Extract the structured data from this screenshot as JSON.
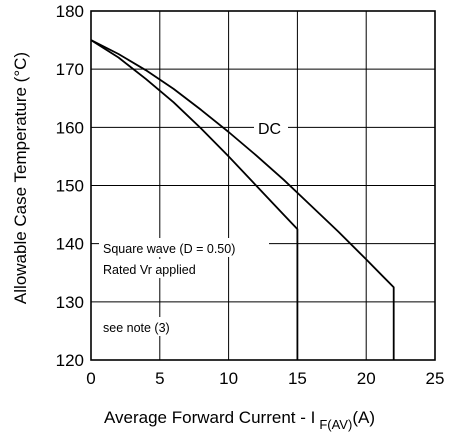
{
  "chart_data": {
    "type": "line",
    "title": "",
    "xlabel": {
      "main": "Average Forward Current - I",
      "subscript": "F(AV)",
      "unit": "(A)"
    },
    "ylabel": "Allowable Case Temperature (°C)",
    "xlim": [
      0,
      25
    ],
    "ylim": [
      120,
      180
    ],
    "x_ticks": [
      "0",
      "5",
      "10",
      "15",
      "20",
      "25"
    ],
    "y_ticks": [
      "120",
      "130",
      "140",
      "150",
      "160",
      "170",
      "180"
    ],
    "grid": true,
    "series": [
      {
        "name": "DC",
        "x": [
          0,
          2,
          4,
          6,
          8,
          10,
          12,
          14,
          16,
          18,
          20,
          22,
          22
        ],
        "y": [
          175,
          172.6,
          169.8,
          166.6,
          163.0,
          159.2,
          155.2,
          151.0,
          146.5,
          142.0,
          137.3,
          132.5,
          120
        ]
      },
      {
        "name": "",
        "x": [
          0,
          2,
          4,
          6,
          8,
          10,
          12,
          14,
          15,
          15
        ],
        "y": [
          175,
          172.0,
          168.3,
          164.3,
          159.8,
          155.0,
          150.0,
          145.0,
          142.5,
          120
        ]
      }
    ],
    "annotations": [
      "Square wave (D = 0.50)",
      "Rated Vr  applied",
      "see note (3)"
    ]
  }
}
